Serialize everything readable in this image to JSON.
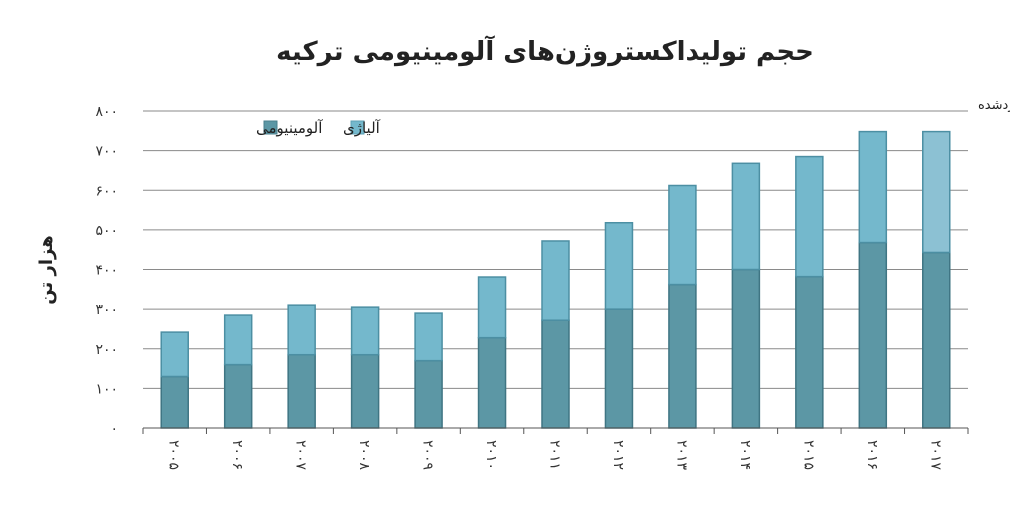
{
  "chart_data": {
    "type": "bar",
    "stacked": true,
    "title": "حجم تولیداکستروژن‌های آلومینیومی ترکیه",
    "ylabel": "هزار تن",
    "xlabel": "",
    "ylim": [
      0,
      800
    ],
    "yticks": [
      0,
      100,
      200,
      300,
      400,
      500,
      600,
      700,
      800
    ],
    "ytick_labels": [
      "۰",
      "۱۰۰",
      "۲۰۰",
      "۳۰۰",
      "۴۰۰",
      "۵۰۰",
      "۶۰۰",
      "۷۰۰",
      "۸۰۰"
    ],
    "categories": [
      "۲۰۰۵",
      "۲۰۰۶",
      "۲۰۰۷",
      "۲۰۰۸",
      "۲۰۰۹",
      "۲۰۱۰",
      "۲۰۱۱",
      "۲۰۱۲",
      "۲۰۱۳",
      "۲۰۱۴",
      "۲۰۱۵",
      "۲۰۱۶",
      "۲۰۱۷"
    ],
    "series": [
      {
        "name": "آلومینیومی",
        "color": "#5c97a5",
        "values": [
          130,
          160,
          185,
          185,
          170,
          228,
          272,
          300,
          362,
          400,
          382,
          468,
          443
        ]
      },
      {
        "name": "آلیاژی",
        "color": "#74b8cc",
        "values": [
          112,
          125,
          125,
          120,
          120,
          153,
          200,
          218,
          250,
          268,
          303,
          280,
          305
        ]
      }
    ],
    "estimate_color": "#8cc1d3",
    "annotation": "برآوردشده",
    "grid": true,
    "legend_position": "top-left"
  }
}
